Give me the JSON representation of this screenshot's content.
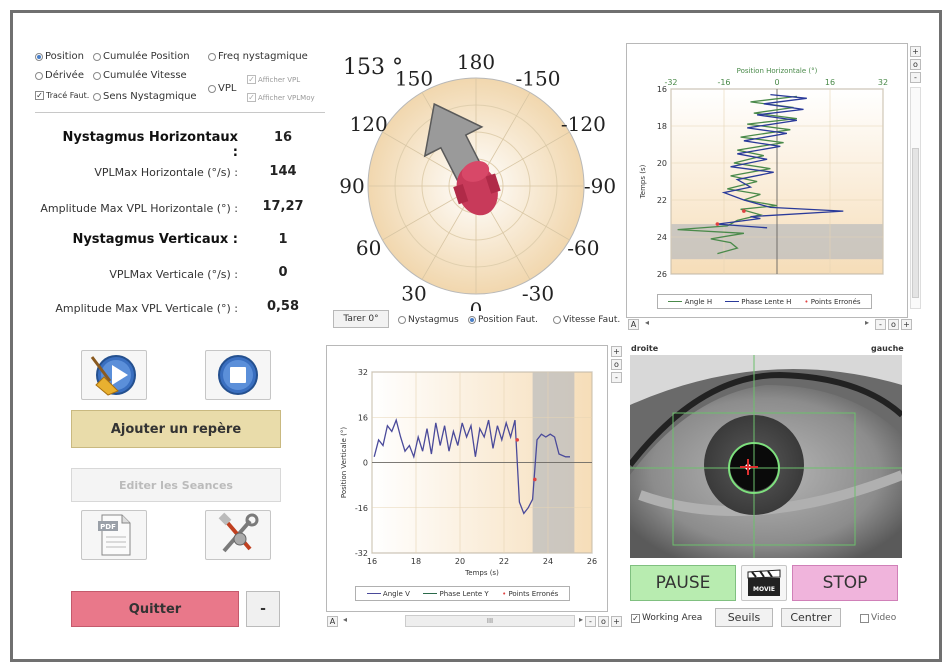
{
  "options": {
    "display_radios": [
      "Position",
      "Cumulée Position",
      "Freq nystagmique",
      "Dérivée",
      "Cumulée Vitesse",
      "VPL",
      "Sens Nystagmique"
    ],
    "trace_faut": "Tracé Faut.",
    "afficher_vpl": "Afficher VPL",
    "afficher_vplmoy": "Afficher VPLMoy"
  },
  "stats": {
    "nyst_h_label": "Nystagmus Horizontaux :",
    "nyst_h_value": "16",
    "vplmax_h_label": "VPLMax Horizontale (°/s) :",
    "vplmax_h_value": "144",
    "ampmax_h_label": "Amplitude Max VPL Horizontale (°) :",
    "ampmax_h_value": "17,27",
    "nyst_v_label": "Nystagmus Verticaux :",
    "nyst_v_value": "1",
    "vplmax_v_label": "VPLMax Verticale (°/s) :",
    "vplmax_v_value": "0",
    "ampmax_v_label": "Amplitude Max VPL Verticale (°) :",
    "ampmax_v_value": "0,58"
  },
  "buttons": {
    "ajouter": "Ajouter un repère",
    "editer": "Editer les Seances",
    "quitter": "Quitter",
    "minus": "-",
    "pause": "PAUSE",
    "stop": "STOP",
    "seuils": "Seuils",
    "centrer": "Centrer",
    "tarer": "Tarer 0°",
    "pdf": "PDF",
    "movie": "MOVIE"
  },
  "polar": {
    "angle_readout": "153 °",
    "labels": [
      "180",
      "-150",
      "-120",
      "-90",
      "-60",
      "-30",
      "0",
      "30",
      "60",
      "90",
      "120",
      "150"
    ],
    "arrow_angle": 153,
    "options": [
      "Nystagmus",
      "Position Faut.",
      "Vitesse Faut."
    ],
    "selected_option": "Position Faut."
  },
  "video": {
    "left_label": "droite",
    "right_label": "gauche",
    "working_area": "Working Area",
    "video_label": "Video"
  },
  "scroll_label": "III",
  "chart_data": [
    {
      "type": "line",
      "title": "Position Horizontale (°)",
      "xlabel": "Position Horizontale (°)",
      "ylabel": "Temps (s)",
      "xlim": [
        -32,
        32
      ],
      "ylim": [
        16,
        26
      ],
      "xticks": [
        "-32",
        "-16",
        "0",
        "16",
        "32"
      ],
      "yticks": [
        "16",
        "18",
        "20",
        "22",
        "24",
        "26"
      ],
      "axis_corner": "A",
      "legend": [
        "Angle H",
        "Phase Lente H",
        "Points Erronés"
      ],
      "series": [
        {
          "name": "Angle H",
          "color": "#4a8a4a",
          "points": [
            [
              6,
              16.4
            ],
            [
              -8,
              16.7
            ],
            [
              5,
              17.0
            ],
            [
              -7,
              17.3
            ],
            [
              6,
              17.6
            ],
            [
              -9,
              17.9
            ],
            [
              4,
              18.2
            ],
            [
              -11,
              18.6
            ],
            [
              2,
              18.9
            ],
            [
              -12,
              19.3
            ],
            [
              -4,
              19.6
            ],
            [
              -13,
              20.0
            ],
            [
              -2,
              20.3
            ],
            [
              -14,
              20.7
            ],
            [
              -6,
              21.0
            ],
            [
              -15,
              21.4
            ],
            [
              -5,
              21.7
            ],
            [
              -10,
              22.0
            ],
            [
              0,
              22.3
            ],
            [
              -11,
              22.5
            ],
            [
              -5,
              22.8
            ],
            [
              -12,
              23.1
            ],
            [
              -15,
              23.4
            ],
            [
              -30,
              23.6
            ],
            [
              -10,
              23.8
            ],
            [
              -20,
              24.1
            ],
            [
              -14,
              24.3
            ],
            [
              -12,
              24.6
            ],
            [
              -18,
              24.9
            ]
          ]
        },
        {
          "name": "Phase Lente H",
          "color": "#2a3a9a",
          "points": [
            [
              -2,
              16.3
            ],
            [
              9,
              16.5
            ],
            [
              -4,
              16.8
            ],
            [
              8,
              17.1
            ],
            [
              -6,
              17.4
            ],
            [
              6,
              17.7
            ],
            [
              -9,
              18.1
            ],
            [
              3,
              18.4
            ],
            [
              -10,
              18.8
            ],
            [
              1,
              19.1
            ],
            [
              -12,
              19.5
            ],
            [
              -3,
              19.8
            ],
            [
              -14,
              20.2
            ],
            [
              -1,
              20.5
            ],
            [
              -12,
              20.9
            ],
            [
              -8,
              21.3
            ],
            [
              -16,
              21.6
            ],
            [
              -10,
              22.0
            ],
            [
              -2,
              22.4
            ],
            [
              20,
              22.6
            ],
            [
              -8,
              22.9
            ],
            [
              -5,
              23.0
            ],
            [
              -18,
              23.3
            ],
            [
              -3,
              23.5
            ]
          ]
        }
      ],
      "error_points": [
        [
          -10,
          22.6
        ],
        [
          -18,
          23.3
        ]
      ],
      "shaded_y": [
        23.3,
        25.2
      ]
    },
    {
      "type": "line",
      "title": "",
      "xlabel": "Temps (s)",
      "ylabel": "Position Verticale (°)",
      "xlim": [
        16,
        26
      ],
      "ylim": [
        -32,
        32
      ],
      "xticks": [
        "16",
        "18",
        "20",
        "22",
        "24",
        "26"
      ],
      "yticks": [
        "32",
        "16",
        "0",
        "-16",
        "-32"
      ],
      "axis_corner": "A",
      "legend": [
        "Angle V",
        "Phase Lente Y",
        "Points Erronés"
      ],
      "series": [
        {
          "name": "Angle V",
          "color": "#4a4a9a",
          "points": [
            [
              16.1,
              2
            ],
            [
              16.3,
              8
            ],
            [
              16.5,
              6
            ],
            [
              16.7,
              13
            ],
            [
              16.9,
              11
            ],
            [
              17.1,
              15
            ],
            [
              17.3,
              9
            ],
            [
              17.5,
              4
            ],
            [
              17.7,
              6
            ],
            [
              17.9,
              2
            ],
            [
              18.1,
              9
            ],
            [
              18.3,
              4
            ],
            [
              18.5,
              12
            ],
            [
              18.7,
              3
            ],
            [
              18.9,
              14
            ],
            [
              19.1,
              6
            ],
            [
              19.3,
              13
            ],
            [
              19.5,
              4
            ],
            [
              19.7,
              11
            ],
            [
              19.9,
              6
            ],
            [
              20.1,
              14
            ],
            [
              20.3,
              9
            ],
            [
              20.5,
              13
            ],
            [
              20.7,
              2
            ],
            [
              20.9,
              12
            ],
            [
              21.1,
              9
            ],
            [
              21.3,
              15
            ],
            [
              21.5,
              5
            ],
            [
              21.7,
              13
            ],
            [
              21.9,
              8
            ],
            [
              22.1,
              14
            ],
            [
              22.3,
              9
            ],
            [
              22.5,
              15
            ],
            [
              22.7,
              -14
            ],
            [
              22.9,
              -18
            ],
            [
              23.1,
              -16
            ],
            [
              23.3,
              -13
            ],
            [
              23.5,
              8
            ],
            [
              23.7,
              10
            ],
            [
              23.9,
              9
            ],
            [
              24.1,
              10
            ],
            [
              24.3,
              9
            ],
            [
              24.5,
              3
            ],
            [
              24.8,
              2
            ],
            [
              25.0,
              2
            ]
          ]
        }
      ],
      "error_points": [
        [
          22.6,
          8
        ],
        [
          23.4,
          -6
        ]
      ],
      "shaded_x": [
        23.3,
        25.2
      ]
    }
  ]
}
